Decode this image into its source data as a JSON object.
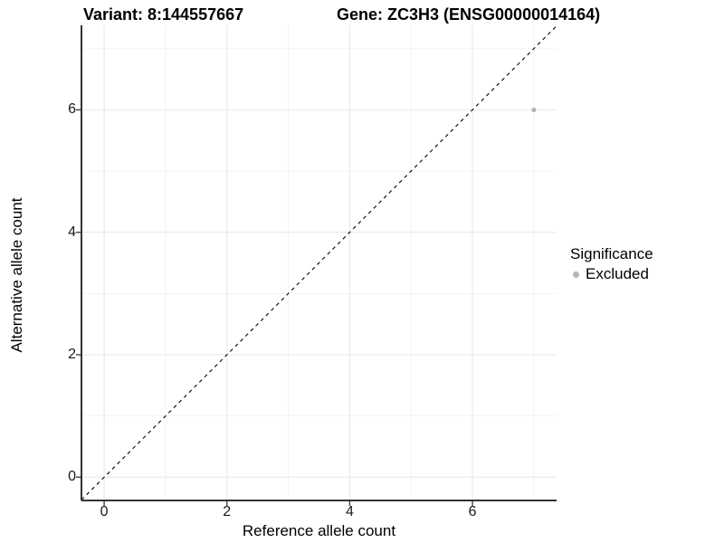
{
  "titles": {
    "left": "Variant: 8:144557667",
    "right": "Gene: ZC3H3 (ENSG00000014164)"
  },
  "chart_data": {
    "type": "scatter",
    "title": "Variant: 8:144557667 | Gene: ZC3H3 (ENSG00000014164)",
    "xlabel": "Reference allele count",
    "ylabel": "Alternative allele count",
    "xlim": [
      -0.37,
      7.37
    ],
    "ylim": [
      -0.38,
      7.38
    ],
    "x_ticks": [
      0,
      2,
      4,
      6
    ],
    "x_minor_ticks": [
      1,
      3,
      5,
      7
    ],
    "y_ticks": [
      0,
      2,
      4,
      6
    ],
    "y_minor_ticks": [
      1,
      3,
      5,
      7
    ],
    "grid": true,
    "series": [
      {
        "name": "Excluded",
        "color": "#b5b5b5",
        "point_radius": 2.6,
        "points": [
          {
            "x": 7,
            "y": 6
          }
        ]
      }
    ],
    "reference_line": {
      "kind": "identity",
      "style": "dashed",
      "color": "#000000"
    },
    "legend": {
      "title": "Significance",
      "position": "right",
      "entries": [
        {
          "label": "Excluded",
          "color": "#b5b5b5"
        }
      ]
    }
  },
  "colors": {
    "axis_line": "#333333",
    "tick_mark": "#4d4d4d",
    "grid_major": "#e7e7e7",
    "grid_minor": "#f3f3f3",
    "panel_bg": "#ffffff"
  }
}
